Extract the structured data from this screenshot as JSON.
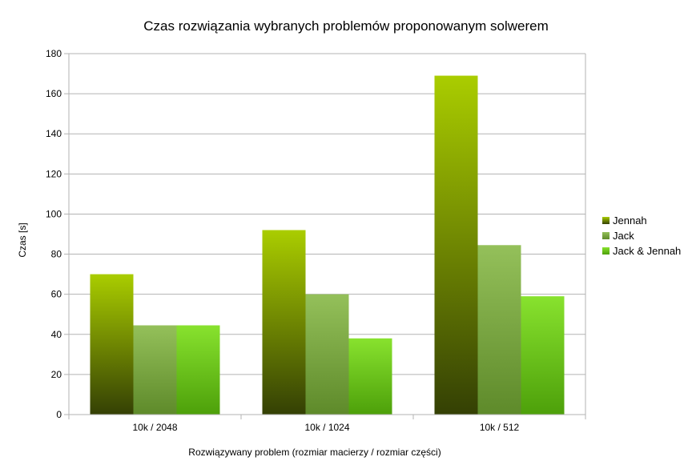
{
  "chart_data": {
    "type": "bar",
    "title": "Czas rozwiązania wybranych problemów proponowanym solwerem",
    "xlabel": "Rozwiązywany problem (rozmiar macierzy / rozmiar części)",
    "ylabel": "Czas [s]",
    "ylim": [
      0,
      180
    ],
    "yticks": [
      0,
      20,
      40,
      60,
      80,
      100,
      120,
      140,
      160,
      180
    ],
    "grid": "horizontal",
    "legend_position": "right",
    "categories": [
      "10k / 2048",
      "10k / 1024",
      "10k / 512"
    ],
    "series": [
      {
        "name": "Jennah",
        "values": [
          70,
          92,
          169
        ],
        "color_top": "#aacd00",
        "color_bottom": "#344004"
      },
      {
        "name": "Jack",
        "values": [
          44.5,
          60,
          84.5
        ],
        "color_top": "#94c05a",
        "color_bottom": "#5e8a2a"
      },
      {
        "name": "Jack & Jennah",
        "values": [
          44.5,
          38,
          59
        ],
        "color_top": "#88e22e",
        "color_bottom": "#4da00a"
      }
    ]
  }
}
